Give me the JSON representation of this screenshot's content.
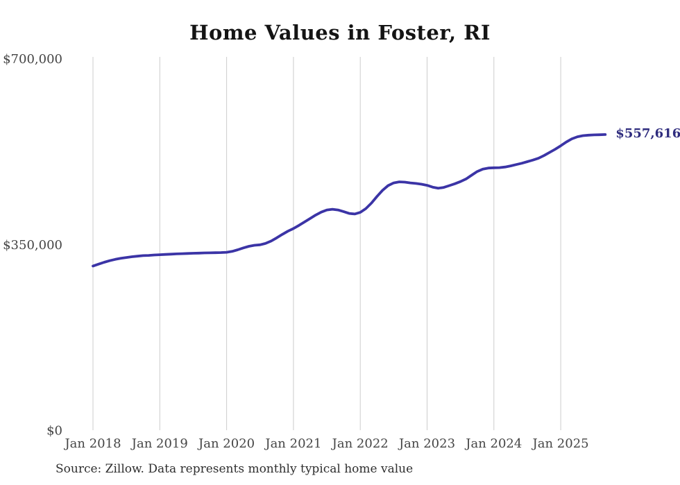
{
  "page": {
    "source_note": "Source: Zillow. Data represents monthly typical home value"
  },
  "chart_data": {
    "type": "line",
    "title": "Home Values in Foster, RI",
    "series_name": "Monthly typical home value",
    "legend": "none",
    "grid": "vertical-only",
    "ylim": [
      0,
      700000
    ],
    "y_ticks": [
      {
        "label": "$0",
        "value": 0
      },
      {
        "label": "$350,000",
        "value": 350000
      },
      {
        "label": "$700,000",
        "value": 700000
      }
    ],
    "x_tick_labels": [
      "Jan 2018",
      "Jan 2019",
      "Jan 2020",
      "Jan 2021",
      "Jan 2022",
      "Jan 2023",
      "Jan 2024",
      "Jan 2025"
    ],
    "end_label": "$557,616",
    "colors": {
      "line": "#3b34a6",
      "end_label": "#2f2c7e",
      "grid": "#cccccc",
      "tick_text": "#454545",
      "title_text": "#141414",
      "source_text": "#2e2e2e",
      "background": "#ffffff"
    },
    "x": [
      "2018-01",
      "2018-02",
      "2018-03",
      "2018-04",
      "2018-05",
      "2018-06",
      "2018-07",
      "2018-08",
      "2018-09",
      "2018-10",
      "2018-11",
      "2018-12",
      "2019-01",
      "2019-02",
      "2019-03",
      "2019-04",
      "2019-05",
      "2019-06",
      "2019-07",
      "2019-08",
      "2019-09",
      "2019-10",
      "2019-11",
      "2019-12",
      "2020-01",
      "2020-02",
      "2020-03",
      "2020-04",
      "2020-05",
      "2020-06",
      "2020-07",
      "2020-08",
      "2020-09",
      "2020-10",
      "2020-11",
      "2020-12",
      "2021-01",
      "2021-02",
      "2021-03",
      "2021-04",
      "2021-05",
      "2021-06",
      "2021-07",
      "2021-08",
      "2021-09",
      "2021-10",
      "2021-11",
      "2021-12",
      "2022-01",
      "2022-02",
      "2022-03",
      "2022-04",
      "2022-05",
      "2022-06",
      "2022-07",
      "2022-08",
      "2022-09",
      "2022-10",
      "2022-11",
      "2022-12",
      "2023-01",
      "2023-02",
      "2023-03",
      "2023-04",
      "2023-05",
      "2023-06",
      "2023-07",
      "2023-08",
      "2023-09",
      "2023-10",
      "2023-11",
      "2023-12",
      "2024-01",
      "2024-02",
      "2024-03",
      "2024-04",
      "2024-05",
      "2024-06",
      "2024-07",
      "2024-08",
      "2024-09",
      "2024-10",
      "2024-11",
      "2024-12",
      "2025-01",
      "2025-02",
      "2025-03",
      "2025-04",
      "2025-05",
      "2025-06",
      "2025-07",
      "2025-08",
      "2025-09"
    ],
    "values": [
      310000,
      313500,
      317000,
      320000,
      322500,
      324500,
      326000,
      327500,
      328500,
      329500,
      330000,
      330700,
      331200,
      331800,
      332300,
      332800,
      333200,
      333600,
      334000,
      334300,
      334600,
      334800,
      335000,
      335300,
      335800,
      337500,
      340500,
      344000,
      347000,
      349000,
      350000,
      352500,
      357000,
      363000,
      369500,
      375500,
      380500,
      386500,
      393000,
      399500,
      406000,
      411500,
      415500,
      416800,
      415500,
      412500,
      409000,
      408000,
      411000,
      418000,
      428500,
      441000,
      452500,
      461500,
      466500,
      468500,
      468000,
      466500,
      465500,
      464000,
      462000,
      458500,
      456500,
      458000,
      461500,
      465000,
      469000,
      474000,
      481000,
      488000,
      492500,
      494500,
      495000,
      495300,
      496500,
      498500,
      501000,
      503500,
      506500,
      509500,
      513000,
      518000,
      524000,
      530000,
      536500,
      543500,
      549500,
      553500,
      555500,
      556500,
      557000,
      557300,
      557616
    ]
  }
}
